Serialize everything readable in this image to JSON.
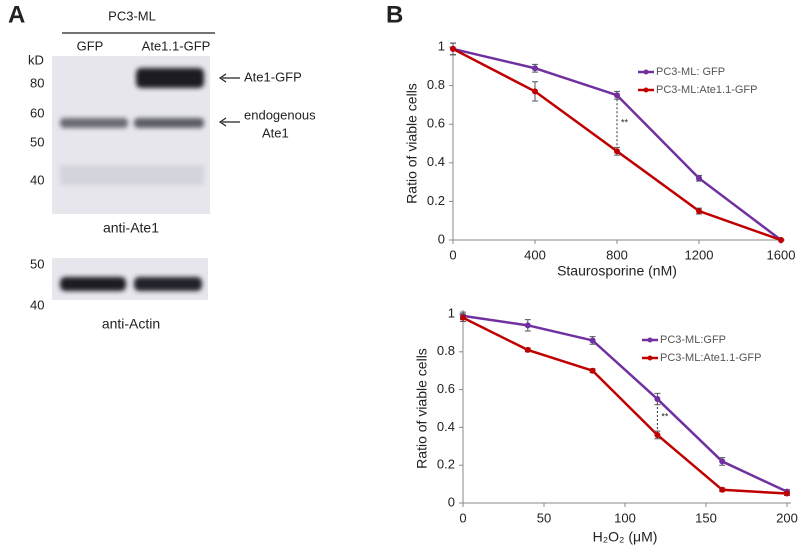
{
  "panel_a": {
    "label": "A",
    "cell_line": "PC3-ML",
    "lanes": [
      "GFP",
      "Ate1.1-GFP"
    ],
    "mw_unit": "kD",
    "mw_markers": [
      "80",
      "60",
      "50",
      "40"
    ],
    "band_label": "Ate1-GFP",
    "endogenous_label": [
      "endogenous",
      "Ate1"
    ],
    "antibody": "anti-Ate1",
    "actin_markers": [
      "50",
      "40"
    ],
    "actin_antibody": "anti-Actin"
  },
  "panel_b": {
    "label": "B"
  },
  "chart_data": [
    {
      "type": "line",
      "x_label": "Staurosporine (nM)",
      "y_label": "Ratio of viable cells",
      "x": [
        0,
        400,
        800,
        1200,
        1600
      ],
      "xlim": [
        0,
        1600
      ],
      "xticks": [
        0,
        400,
        800,
        1200,
        1600
      ],
      "ylim": [
        0,
        1
      ],
      "yticks": [
        0,
        0.2,
        0.4,
        0.6,
        0.8,
        1
      ],
      "series": [
        {
          "name": "PC3-ML: GFP",
          "color": "#7030a0",
          "values": [
            0.99,
            0.89,
            0.75,
            0.32,
            0.0
          ],
          "errors": [
            0.03,
            0.02,
            0.02,
            0.015,
            0.0
          ]
        },
        {
          "name": "PC3-ML:Ate1.1-GFP",
          "color": "#c00000",
          "values": [
            0.99,
            0.77,
            0.46,
            0.15,
            0.0
          ],
          "errors": [
            0.03,
            0.05,
            0.02,
            0.015,
            0.0
          ]
        }
      ],
      "annotation": {
        "text": "**",
        "x": 800
      }
    },
    {
      "type": "line",
      "x_label": "H₂O₂ (μM)",
      "y_label": "Ratio of viable cells",
      "x": [
        0,
        40,
        80,
        120,
        160,
        200
      ],
      "xlim": [
        0,
        200
      ],
      "xticks": [
        0,
        50,
        100,
        150,
        200
      ],
      "ylim": [
        0,
        1
      ],
      "yticks": [
        0,
        0.2,
        0.4,
        0.6,
        0.8,
        1
      ],
      "series": [
        {
          "name": "PC3-ML:GFP",
          "color": "#7030a0",
          "values": [
            0.99,
            0.94,
            0.86,
            0.55,
            0.22,
            0.06
          ],
          "errors": [
            0.02,
            0.03,
            0.02,
            0.03,
            0.02,
            0.01
          ]
        },
        {
          "name": "PC3-ML:Ate1.1-GFP",
          "color": "#c00000",
          "values": [
            0.98,
            0.81,
            0.7,
            0.36,
            0.07,
            0.05
          ],
          "errors": [
            0.02,
            0.01,
            0.01,
            0.02,
            0.01,
            0.01
          ]
        }
      ],
      "annotation": {
        "text": "**",
        "x": 120
      }
    }
  ]
}
